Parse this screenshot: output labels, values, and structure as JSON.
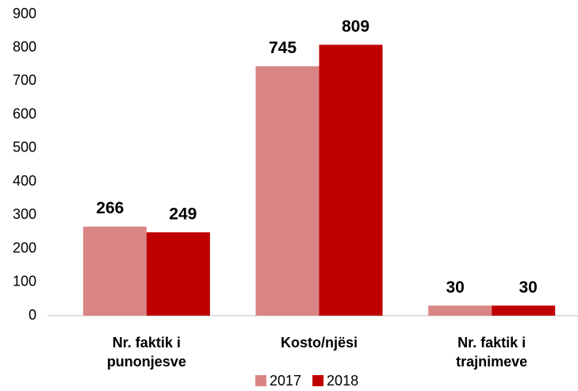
{
  "chart_data": {
    "type": "bar",
    "categories": [
      "Nr. faktik i punonjesve",
      "Kosto/njësi",
      "Nr. faktik i trajnimeve"
    ],
    "series": [
      {
        "name": "2017",
        "color": "#d98585",
        "values": [
          266,
          745,
          30
        ]
      },
      {
        "name": "2018",
        "color": "#c00000",
        "values": [
          249,
          809,
          30
        ]
      }
    ],
    "ylim": [
      0,
      900
    ],
    "yticks": [
      0,
      100,
      200,
      300,
      400,
      500,
      600,
      700,
      800,
      900
    ],
    "grid": false,
    "legend": "bottom"
  }
}
